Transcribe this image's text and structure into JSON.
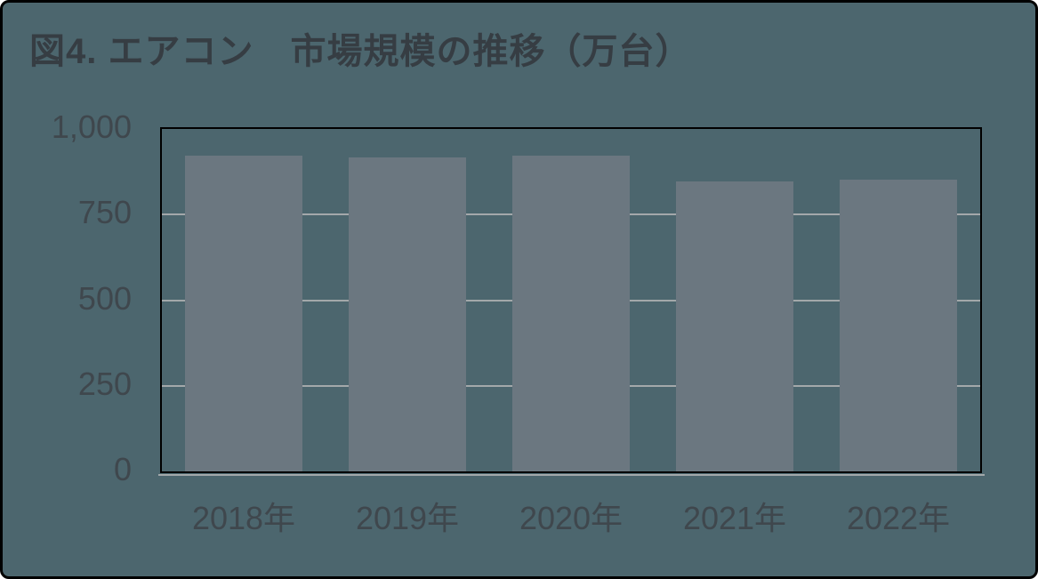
{
  "colors": {
    "background": "#4c666e",
    "bar": "#6b7780",
    "gridline": "#a3a8aa",
    "axis_text": "#3f474d",
    "title_text": "#363d43",
    "plot_border": "#000000",
    "frame_border": "#000000"
  },
  "chart_data": {
    "type": "bar",
    "title": "図4. エアコン　市場規模の推移（万台）",
    "categories": [
      "2018年",
      "2019年",
      "2020年",
      "2021年",
      "2022年"
    ],
    "values": [
      923,
      918,
      923,
      848,
      851
    ],
    "ylim": [
      0,
      1000
    ],
    "ytick_values": [
      0,
      250,
      500,
      750,
      1000
    ],
    "ytick_labels": [
      "0",
      "250",
      "500",
      "750",
      "1,000"
    ],
    "grid": true,
    "legend": false,
    "xlabel": "",
    "ylabel": ""
  }
}
